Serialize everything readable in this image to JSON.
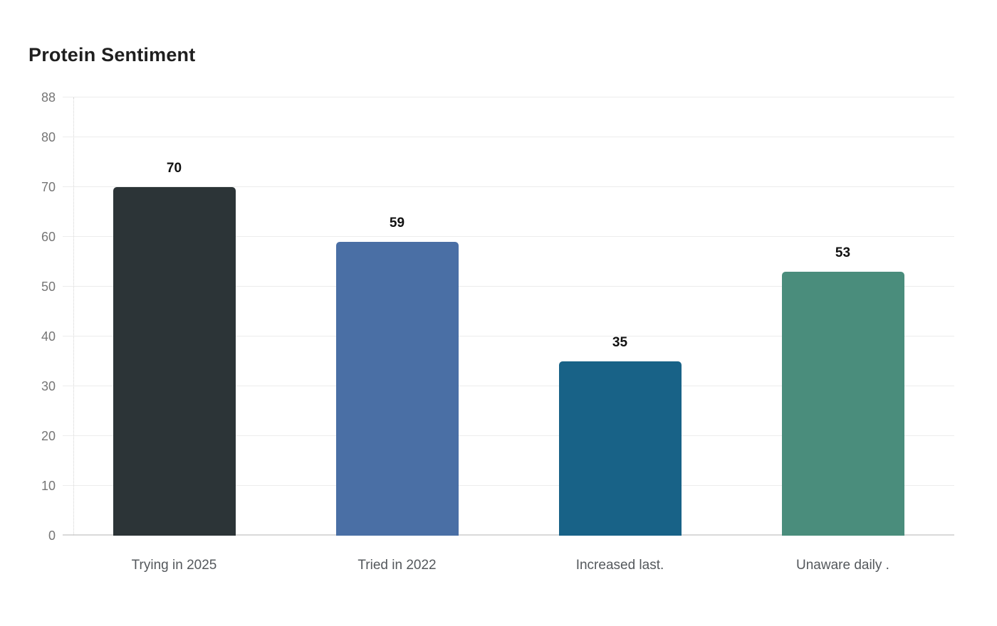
{
  "page": {
    "title": "Protein Sentiment"
  },
  "chart_data": {
    "type": "bar",
    "title": "Protein Sentiment",
    "categories": [
      "Trying in 2025",
      "Tried in 2022",
      "Increased last.",
      "Unaware daily ."
    ],
    "values": [
      70,
      59,
      35,
      53
    ],
    "data_labels": [
      "70",
      "59",
      "35",
      "53"
    ],
    "bar_colors": [
      "#2c3437",
      "#4a6fa5",
      "#186287",
      "#4a8d7c"
    ],
    "yticks": [
      0,
      10,
      20,
      30,
      40,
      50,
      60,
      70,
      80,
      88
    ],
    "ylim": [
      0,
      88
    ],
    "xlabel": "",
    "ylabel": "",
    "grid": true,
    "legend": false,
    "grid_color": "#ececec",
    "baseline_color": "#d9d9d9",
    "tick_label_color": "#767676",
    "category_label_color": "#54585c",
    "value_label_color": "#111111",
    "title_color": "#1f1f1f",
    "background_color": "#ffffff"
  }
}
